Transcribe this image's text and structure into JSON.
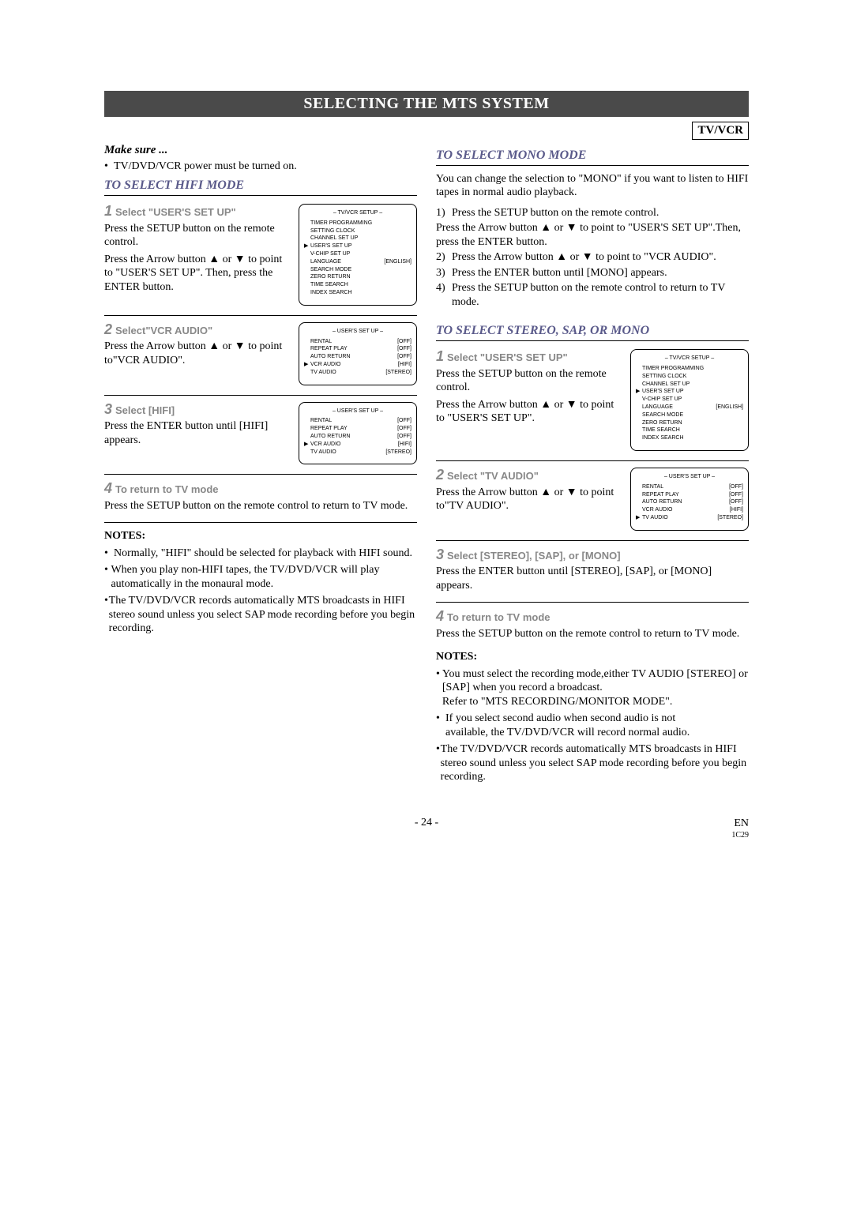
{
  "banner": "SELECTING THE MTS SYSTEM",
  "tvvcr": "TV/VCR",
  "left": {
    "makesure": "Make sure ...",
    "power": "TV/DVD/VCR power must be turned on.",
    "hifiTitle": "TO SELECT HIFI MODE",
    "step1head": "Select \"USER'S SET UP\"",
    "step1p1": "Press the SETUP button on the remote control.",
    "step1p2": "Press the Arrow button ▲ or ▼ to point to \"USER'S SET UP\". Then, press the ENTER button.",
    "step2head": "Select\"VCR AUDIO\"",
    "step2p1": "Press the Arrow button ▲ or ▼ to point to\"VCR AUDIO\".",
    "step3head": "Select [HIFI]",
    "step3p1": "Press the ENTER button until [HIFI] appears.",
    "step4head": "To return to TV mode",
    "step4p1": "Press the SETUP button on the remote control to return to TV mode.",
    "notesH": "NOTES:",
    "note1": "Normally, \"HIFI\" should be selected for playback with HIFI sound.",
    "note2": "When you play non-HIFI tapes, the TV/DVD/VCR will play automatically in the monaural mode.",
    "note3": "The TV/DVD/VCR records automatically MTS broadcasts in HIFI stereo sound unless you select SAP mode recording before you begin recording."
  },
  "right": {
    "monoTitle": "TO SELECT MONO MODE",
    "monoIntro": "You can change the selection to \"MONO\" if you want to listen to HIFI tapes in normal audio playback.",
    "m1": "Press the SETUP button on the remote control.",
    "m1b": "Press the Arrow button ▲ or ▼ to point to \"USER'S SET UP\".Then, press the ENTER button.",
    "m2": "Press the Arrow button ▲ or ▼ to point to \"VCR AUDIO\".",
    "m3": "Press the ENTER button until [MONO] appears.",
    "m4": "Press the SETUP button on the remote control to return to TV mode.",
    "stereoTitle": "TO SELECT STEREO, SAP, OR MONO",
    "s1head": "Select \"USER'S SET UP\"",
    "s1p1": "Press the SETUP button on the remote control.",
    "s1p2": "Press the Arrow button ▲ or ▼ to point to \"USER'S SET UP\".",
    "s2head": "Select \"TV AUDIO\"",
    "s2p1": "Press the Arrow button ▲ or ▼ to point to\"TV AUDIO\".",
    "s3head": "Select [STEREO], [SAP], or [MONO]",
    "s3p1": "Press the ENTER button until [STEREO], [SAP], or [MONO] appears.",
    "s4head": "To return to TV mode",
    "s4p1": "Press the SETUP button on the remote control to return to TV mode.",
    "notesH": "NOTES:",
    "rnote1": "You must select the recording mode,either TV AUDIO [STEREO] or [SAP] when you record a broadcast.",
    "rnote1b": "Refer to \"MTS RECORDING/MONITOR MODE\".",
    "rnote2": "If you select second audio when second audio is not",
    "rnote2b": "available, the TV/DVD/VCR will record normal audio.",
    "rnote3": "The TV/DVD/VCR records automatically MTS broadcasts in HIFI stereo sound unless you select SAP mode recording before you begin recording."
  },
  "osd": {
    "setupTitle": "– TV/VCR SETUP –",
    "userTitle": "– USER'S SET UP –",
    "setup_items": [
      {
        "mk": "",
        "k": "TIMER PROGRAMMING",
        "v": ""
      },
      {
        "mk": "",
        "k": "SETTING CLOCK",
        "v": ""
      },
      {
        "mk": "",
        "k": "CHANNEL SET UP",
        "v": ""
      },
      {
        "mk": "▶",
        "k": "USER'S SET UP",
        "v": ""
      },
      {
        "mk": "",
        "k": "V-CHIP SET UP",
        "v": ""
      },
      {
        "mk": "",
        "k": "LANGUAGE",
        "v": "[ENGLISH]"
      },
      {
        "mk": "",
        "k": "SEARCH MODE",
        "v": ""
      },
      {
        "mk": "",
        "k": "ZERO RETURN",
        "v": ""
      },
      {
        "mk": "",
        "k": "TIME SEARCH",
        "v": ""
      },
      {
        "mk": "",
        "k": "INDEX SEARCH",
        "v": ""
      }
    ],
    "user_vcr": [
      {
        "mk": "",
        "k": "RENTAL",
        "v": "[OFF]"
      },
      {
        "mk": "",
        "k": "REPEAT PLAY",
        "v": "[OFF]"
      },
      {
        "mk": "",
        "k": "AUTO RETURN",
        "v": "[OFF]"
      },
      {
        "mk": "▶",
        "k": "VCR AUDIO",
        "v": "[HIFI]"
      },
      {
        "mk": "",
        "k": "TV AUDIO",
        "v": "[STEREO]"
      }
    ],
    "user_tv": [
      {
        "mk": "",
        "k": "RENTAL",
        "v": "[OFF]"
      },
      {
        "mk": "",
        "k": "REPEAT PLAY",
        "v": "[OFF]"
      },
      {
        "mk": "",
        "k": "AUTO RETURN",
        "v": "[OFF]"
      },
      {
        "mk": "",
        "k": "VCR AUDIO",
        "v": "[HIFI]"
      },
      {
        "mk": "▶",
        "k": "TV AUDIO",
        "v": "[STEREO]"
      }
    ]
  },
  "footer": {
    "page": "- 24 -",
    "en": "EN",
    "code": "1C29"
  }
}
